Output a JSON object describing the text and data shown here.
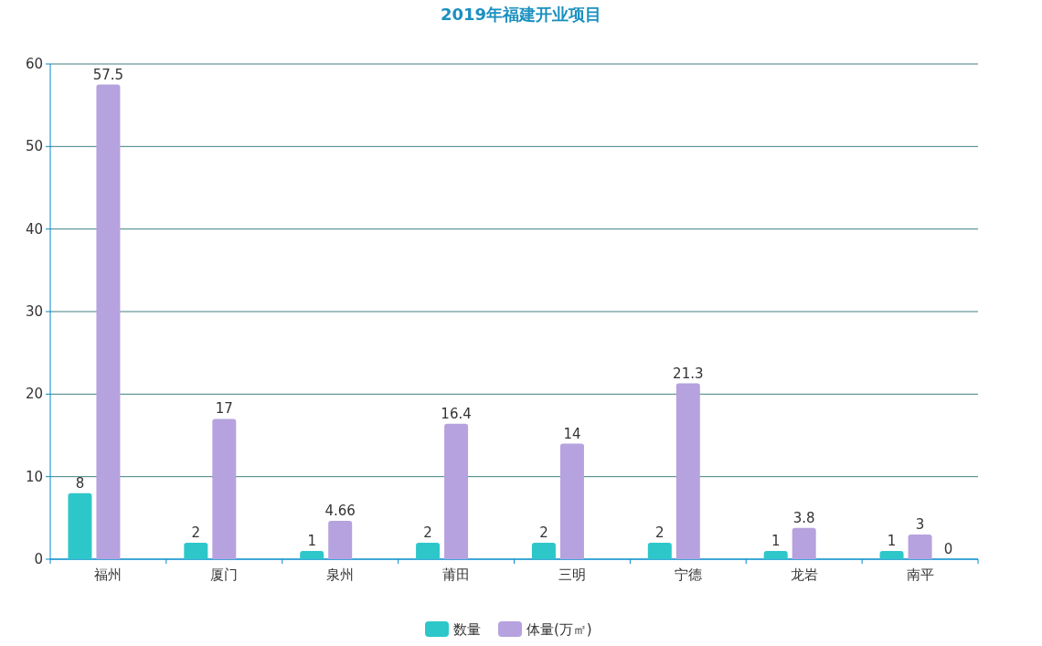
{
  "chart_data": {
    "type": "bar",
    "title": "2019年福建开业项目",
    "categories": [
      "福州",
      "厦门",
      "泉州",
      "莆田",
      "三明",
      "宁德",
      "龙岩",
      "南平"
    ],
    "series": [
      {
        "name": "数量",
        "color": "#2ec7c9",
        "values": [
          8,
          2,
          1,
          2,
          2,
          2,
          1,
          1
        ]
      },
      {
        "name": "体量(万㎡)",
        "color": "#b6a2de",
        "values": [
          57.5,
          17,
          4.66,
          16.4,
          14,
          21.3,
          3.8,
          3
        ]
      }
    ],
    "ylim": [
      0,
      60
    ],
    "yticks": [
      0,
      10,
      20,
      30,
      40,
      50,
      60
    ],
    "grid": "y",
    "legend": "bottom",
    "data_labels": true,
    "annotations": [
      {
        "text": "0",
        "x": "南平",
        "y": 0
      }
    ]
  }
}
